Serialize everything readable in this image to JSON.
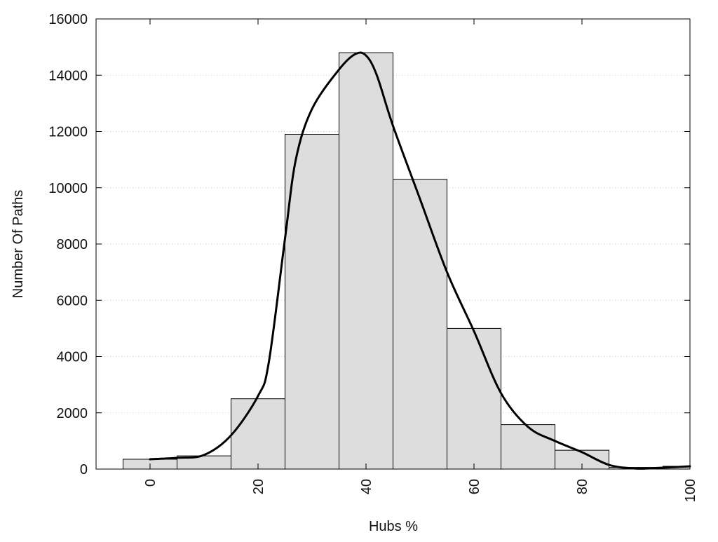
{
  "chart_data": {
    "type": "bar",
    "subtype": "histogram-with-density-curve",
    "title": "",
    "xlabel": "Hubs %",
    "ylabel": "Number Of Paths",
    "xlim": [
      -10,
      100
    ],
    "ylim": [
      0,
      16000
    ],
    "x_ticks": [
      0,
      20,
      40,
      60,
      80,
      100
    ],
    "y_ticks": [
      0,
      2000,
      4000,
      6000,
      8000,
      10000,
      12000,
      14000,
      16000
    ],
    "x_tick_rotation": "vertical",
    "grid": "horizontal dotted",
    "legend": "none",
    "bin_width": 10,
    "bins": [
      {
        "center": 0,
        "value": 350
      },
      {
        "center": 10,
        "value": 470
      },
      {
        "center": 20,
        "value": 2500
      },
      {
        "center": 30,
        "value": 11900
      },
      {
        "center": 40,
        "value": 14800
      },
      {
        "center": 50,
        "value": 10300
      },
      {
        "center": 60,
        "value": 5000
      },
      {
        "center": 70,
        "value": 1580
      },
      {
        "center": 80,
        "value": 670
      },
      {
        "center": 90,
        "value": 60
      },
      {
        "center": 100,
        "value": 100
      }
    ],
    "curve": {
      "x": [
        0,
        5,
        10,
        15,
        20,
        22,
        25,
        27,
        30,
        35,
        38,
        40,
        42,
        45,
        50,
        55,
        60,
        65,
        70,
        75,
        80,
        85,
        90,
        95,
        100
      ],
      "y": [
        350,
        400,
        500,
        1200,
        2600,
        3800,
        8200,
        11000,
        12800,
        14200,
        14750,
        14700,
        14000,
        12200,
        9600,
        7000,
        4900,
        2700,
        1500,
        1000,
        600,
        150,
        20,
        50,
        100
      ]
    },
    "colors": {
      "bar_fill": "#dddddd",
      "bar_edge": "#000000",
      "curve": "#000000",
      "grid": "#cccccc",
      "frame": "#000000"
    }
  }
}
